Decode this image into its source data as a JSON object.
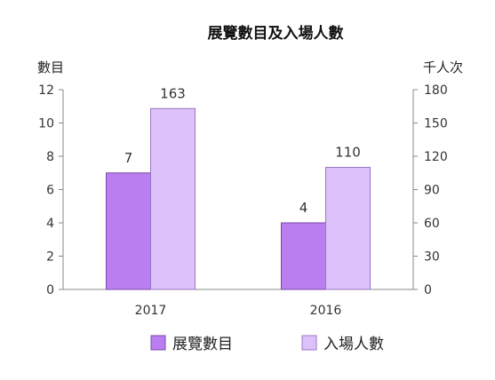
{
  "chart_data": {
    "type": "bar",
    "title": "展覽數目及入場人數",
    "categories": [
      "2017",
      "2016"
    ],
    "series": [
      {
        "name": "展覽數目",
        "values": [
          7,
          4
        ],
        "axis": "left",
        "color": "#bb7ef0",
        "border": "#7a4aa8"
      },
      {
        "name": "入場人數",
        "values": [
          163,
          110
        ],
        "axis": "right",
        "color": "#dcc1fb",
        "border": "#9a78c0"
      }
    ],
    "y_left": {
      "label": "數目",
      "min": 0,
      "max": 12,
      "ticks": [
        0,
        2,
        4,
        6,
        8,
        10,
        12
      ]
    },
    "y_right": {
      "label": "千人次",
      "min": 0,
      "max": 180,
      "ticks": [
        0,
        30,
        60,
        90,
        120,
        150,
        180
      ]
    },
    "grid": false,
    "legend": "bottom"
  }
}
